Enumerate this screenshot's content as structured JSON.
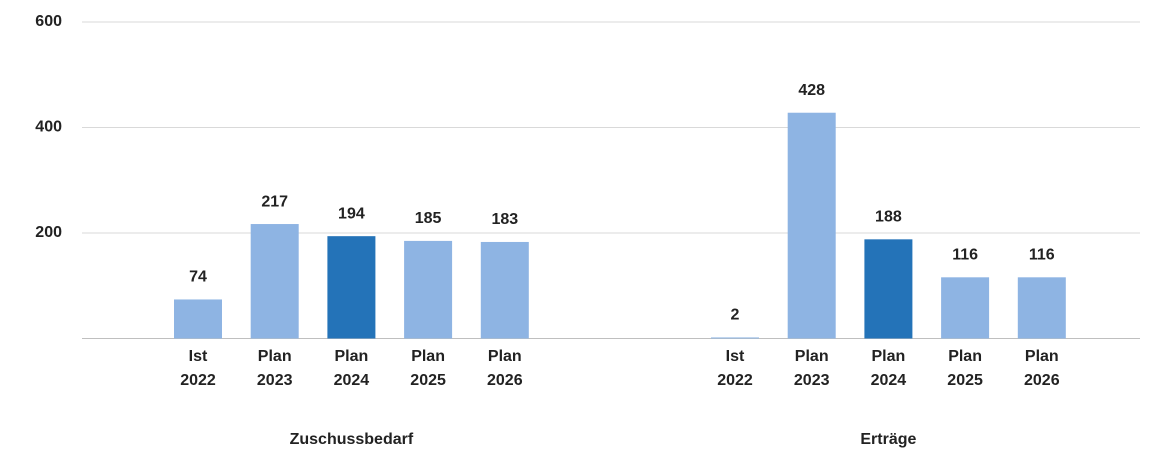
{
  "chart_data": {
    "type": "bar",
    "ylim": [
      0,
      600
    ],
    "yticks": [
      200,
      400,
      600
    ],
    "grid": true,
    "groups": [
      {
        "name": "Zuschussbedarf",
        "categories": [
          [
            "Ist",
            "2022"
          ],
          [
            "Plan",
            "2023"
          ],
          [
            "Plan",
            "2024"
          ],
          [
            "Plan",
            "2025"
          ],
          [
            "Plan",
            "2026"
          ]
        ],
        "values": [
          74,
          217,
          194,
          185,
          183
        ],
        "colors": [
          "#8eb4e3",
          "#8eb4e3",
          "#2473b8",
          "#8eb4e3",
          "#8eb4e3"
        ]
      },
      {
        "name": "Erträge",
        "categories": [
          [
            "Ist",
            "2022"
          ],
          [
            "Plan",
            "2023"
          ],
          [
            "Plan",
            "2024"
          ],
          [
            "Plan",
            "2025"
          ],
          [
            "Plan",
            "2026"
          ]
        ],
        "values": [
          2,
          428,
          188,
          116,
          116
        ],
        "colors": [
          "#8eb4e3",
          "#8eb4e3",
          "#2473b8",
          "#8eb4e3",
          "#8eb4e3"
        ]
      }
    ]
  }
}
